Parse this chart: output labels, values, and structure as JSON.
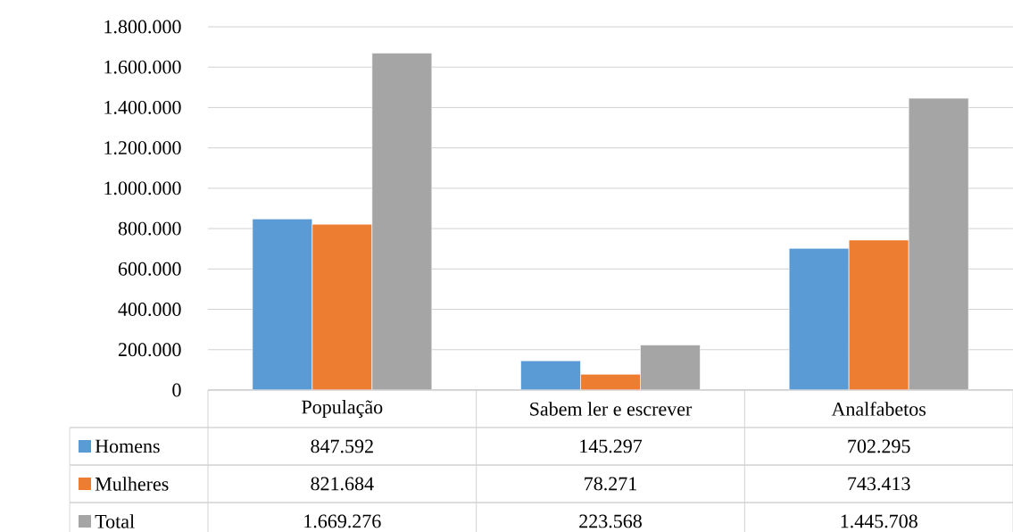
{
  "chart_data": {
    "type": "bar",
    "categories": [
      "População",
      "Sabem ler e escrever",
      "Analfabetos"
    ],
    "series": [
      {
        "name": "Homens",
        "color": "#5b9bd5",
        "values": [
          847592,
          145297,
          702295
        ],
        "value_labels": [
          "847.592",
          "145.297",
          "702.295"
        ]
      },
      {
        "name": "Mulheres",
        "color": "#ed7d31",
        "values": [
          821684,
          78271,
          743413
        ],
        "value_labels": [
          "821.684",
          "78.271",
          "743.413"
        ]
      },
      {
        "name": "Total",
        "color": "#a5a5a5",
        "values": [
          1669276,
          223568,
          1445708
        ],
        "value_labels": [
          "1.669.276",
          "223.568",
          "1.445.708"
        ]
      }
    ],
    "ylim": [
      0,
      1800000
    ],
    "yticks": [
      0,
      {
        "value": 200000,
        "label": "200.000"
      },
      {
        "value": 400000,
        "label": "400.000"
      },
      {
        "value": 600000,
        "label": "600.000"
      },
      {
        "value": 800000,
        "label": "800.000"
      },
      {
        "value": 1000000,
        "label": "1.000.000"
      },
      {
        "value": 1200000,
        "label": "1.200.000"
      },
      {
        "value": 1400000,
        "label": "1.400.000"
      },
      {
        "value": 1600000,
        "label": "1.600.000"
      },
      {
        "value": 1800000,
        "label": "1.800.000"
      }
    ],
    "grid": "y",
    "legend": "bottom"
  }
}
